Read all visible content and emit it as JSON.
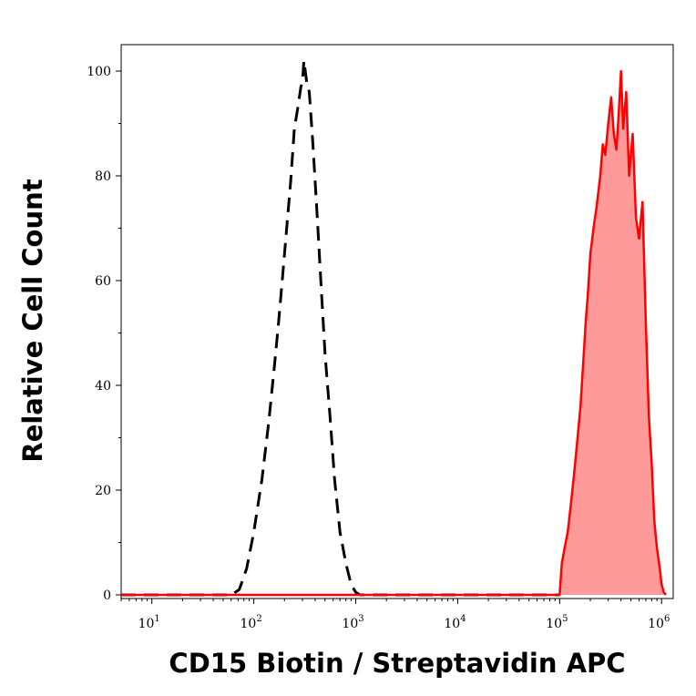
{
  "chart_data": {
    "type": "area",
    "title": "",
    "xlabel": "CD15 Biotin / Streptavidin APC",
    "ylabel": "Relative Cell Count",
    "x_scale": "log",
    "xlim": [
      5,
      1300000
    ],
    "ylim": [
      0,
      100
    ],
    "grid": false,
    "legend": "none",
    "x_ticks": [
      {
        "value": 10,
        "base": "10",
        "exp": "1"
      },
      {
        "value": 100,
        "base": "10",
        "exp": "2"
      },
      {
        "value": 1000,
        "base": "10",
        "exp": "3"
      },
      {
        "value": 10000,
        "base": "10",
        "exp": "4"
      },
      {
        "value": 100000,
        "base": "10",
        "exp": "5"
      },
      {
        "value": 1000000,
        "base": "10",
        "exp": "6"
      }
    ],
    "y_ticks": [
      {
        "value": 0,
        "label": "0"
      },
      {
        "value": 20,
        "label": "20"
      },
      {
        "value": 40,
        "label": "40"
      },
      {
        "value": 60,
        "label": "60"
      },
      {
        "value": 80,
        "label": "80"
      },
      {
        "value": 100,
        "label": "100"
      }
    ],
    "series": [
      {
        "style": "dashed",
        "color": "#000000",
        "fill": "none",
        "x": [
          5,
          60,
          72,
          85,
          100,
          120,
          140,
          160,
          175,
          190,
          210,
          230,
          250,
          270,
          290,
          300,
          310,
          330,
          350,
          380,
          420,
          460,
          500,
          560,
          620,
          700,
          800,
          900,
          1000,
          1100,
          1500,
          5000,
          20000,
          80000,
          100000
        ],
        "y": [
          0,
          0,
          1,
          5,
          12,
          22,
          33,
          44,
          52,
          60,
          70,
          79,
          89,
          93,
          97,
          98,
          102,
          98,
          96,
          86,
          72,
          58,
          46,
          34,
          22,
          12,
          6,
          2,
          0.5,
          0,
          0,
          0,
          0,
          0,
          0
        ]
      },
      {
        "style": "solid",
        "color": "#ff0000",
        "fill": "#ff9a9a",
        "x": [
          5,
          50,
          1000,
          10000,
          50000,
          100000,
          105000,
          112000,
          120000,
          130000,
          140000,
          150000,
          160000,
          170000,
          180000,
          190000,
          200000,
          215000,
          230000,
          250000,
          265000,
          280000,
          300000,
          320000,
          340000,
          360000,
          380000,
          400000,
          420000,
          450000,
          480000,
          520000,
          560000,
          600000,
          650000,
          700000,
          750000,
          800000,
          850000,
          900000,
          960000,
          1000000,
          1050000,
          1100000
        ],
        "y": [
          0,
          0,
          0,
          0,
          0,
          0,
          6,
          9,
          12,
          18,
          24,
          30,
          36,
          44,
          52,
          58,
          65,
          70,
          74,
          80,
          86,
          84,
          90,
          95,
          88,
          85,
          92,
          100,
          89,
          96,
          80,
          88,
          72,
          68,
          75,
          52,
          34,
          25,
          14,
          9,
          5,
          2,
          0.5,
          0
        ]
      }
    ]
  }
}
